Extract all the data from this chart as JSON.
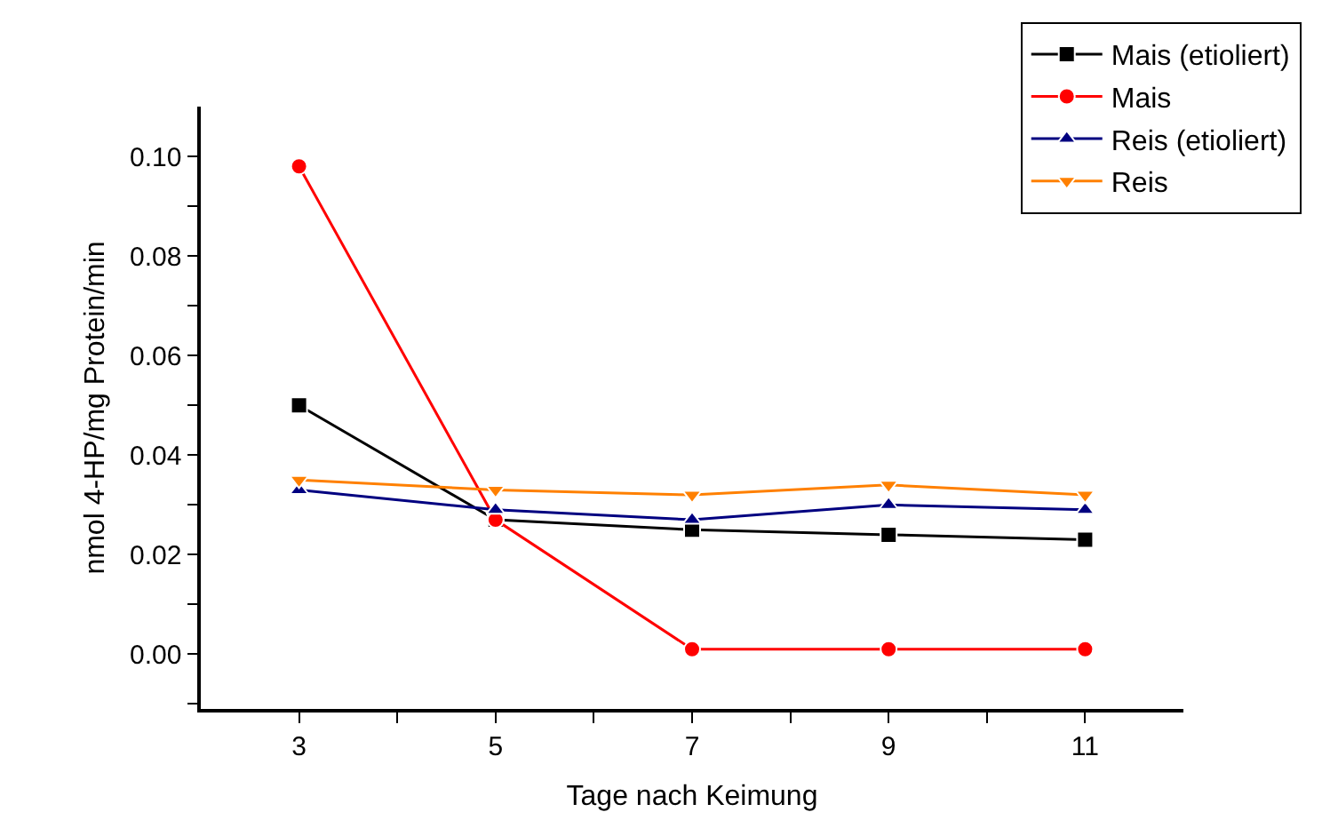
{
  "chart_data": {
    "type": "line",
    "xlabel": "Tage nach Keimung",
    "ylabel": "nmol 4-HP/mg Protein/min",
    "x": [
      3,
      5,
      7,
      9,
      11
    ],
    "series": [
      {
        "name": "Mais (etioliert)",
        "color": "#000000",
        "marker": "square",
        "values": [
          0.05,
          0.027,
          0.025,
          0.024,
          0.023
        ]
      },
      {
        "name": "Mais",
        "color": "#ff0000",
        "marker": "circle",
        "values": [
          0.098,
          0.027,
          0.001,
          0.001,
          0.001
        ]
      },
      {
        "name": "Reis (etioliert)",
        "color": "#000080",
        "marker": "triangle",
        "values": [
          0.033,
          0.029,
          0.027,
          0.03,
          0.029
        ]
      },
      {
        "name": "Reis",
        "color": "#ff8000",
        "marker": "triangle-down",
        "values": [
          0.035,
          0.033,
          0.032,
          0.034,
          0.032
        ]
      }
    ],
    "xlim": [
      2,
      12
    ],
    "xticks": [
      3,
      {
        "value": 4,
        "label": null
      },
      5,
      {
        "value": 6,
        "label": null
      },
      7,
      {
        "value": 8,
        "label": null
      },
      9,
      {
        "value": 10,
        "label": null
      },
      11
    ],
    "ylim": [
      -0.011,
      0.11
    ],
    "yticks": [
      {
        "value": -0.01,
        "label": null
      },
      {
        "value": 0,
        "label": "0.00"
      },
      {
        "value": 0.01,
        "label": null
      },
      {
        "value": 0.02,
        "label": "0.02"
      },
      {
        "value": 0.03,
        "label": null
      },
      {
        "value": 0.04,
        "label": "0.04"
      },
      {
        "value": 0.05,
        "label": null
      },
      {
        "value": 0.06,
        "label": "0.06"
      },
      {
        "value": 0.07,
        "label": null
      },
      {
        "value": 0.08,
        "label": "0.08"
      },
      {
        "value": 0.09,
        "label": null
      },
      {
        "value": 0.1,
        "label": "0.10"
      }
    ],
    "legend": "top right",
    "line_style": "solid"
  }
}
